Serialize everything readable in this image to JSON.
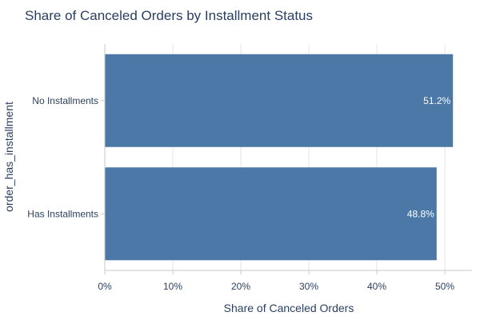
{
  "chart_data": {
    "type": "bar",
    "orientation": "horizontal",
    "title": "Share of Canceled Orders by Installment Status",
    "xlabel": "Share of Canceled Orders",
    "ylabel": "order_has_installment",
    "categories": [
      "No Installments",
      "Has Installments"
    ],
    "values": [
      51.2,
      48.8
    ],
    "data_labels": [
      "51.2%",
      "48.8%"
    ],
    "xlim": [
      0,
      54
    ],
    "x_ticks": [
      0,
      10,
      20,
      30,
      40,
      50
    ],
    "x_tick_labels": [
      "0%",
      "10%",
      "20%",
      "30%",
      "40%",
      "50%"
    ],
    "grid": true,
    "bar_color": "#4c78a8"
  }
}
